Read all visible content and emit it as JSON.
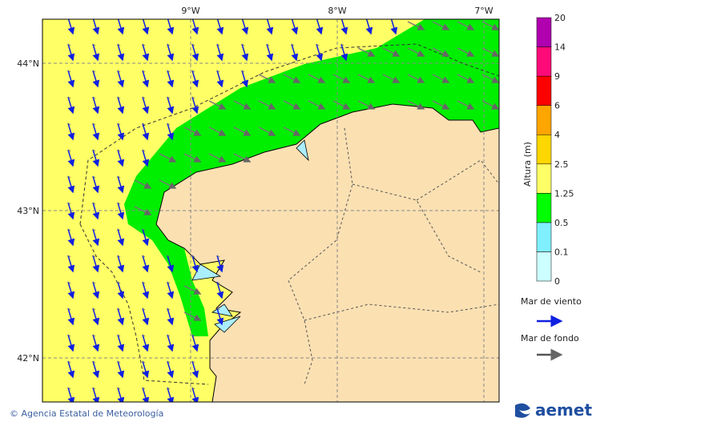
{
  "map": {
    "lon_labels": [
      "9°W",
      "8°W",
      "7°W"
    ],
    "lat_labels": [
      "44°N",
      "43°N",
      "42°N"
    ]
  },
  "colorbar": {
    "title": "Altura (m)",
    "labels": [
      "0",
      "0.1",
      "0.5",
      "1.25",
      "2.5",
      "4",
      "6",
      "9",
      "14",
      "20"
    ],
    "colors": [
      "#ccffff",
      "#80f0ff",
      "#00ff00",
      "#ffff66",
      "#ffd700",
      "#ffa500",
      "#ff0000",
      "#ff0a78",
      "#b000b0"
    ]
  },
  "legend": {
    "wind_sea": "Mar de viento",
    "swell": "Mar de fondo"
  },
  "footer": {
    "credit": "© Agencia Estatal de Meteorología",
    "logo": "aemet"
  }
}
